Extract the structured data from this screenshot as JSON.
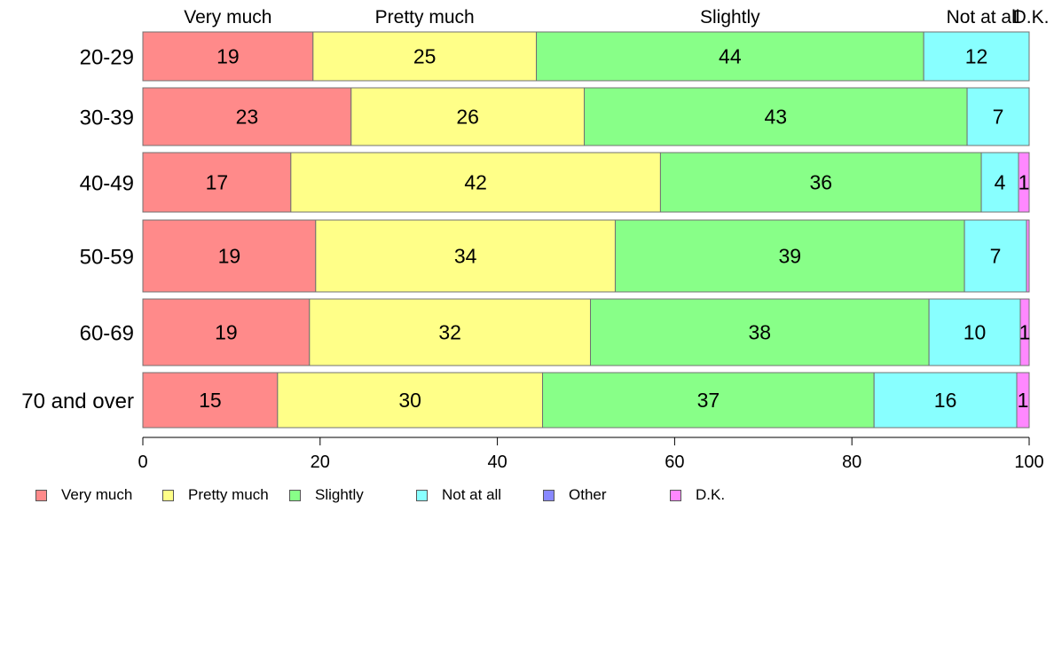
{
  "chart_data": {
    "type": "bar",
    "orientation": "horizontal",
    "stacked": true,
    "categories": [
      "20-29",
      "30-39",
      "40-49",
      "50-59",
      "60-69",
      "70 and over"
    ],
    "column_headers": [
      "Very much",
      "Pretty much",
      "Slightly",
      "Not at all",
      "D.K."
    ],
    "series": [
      {
        "name": "Very much",
        "color": "#ff8a8a",
        "values": [
          19.2,
          23.5,
          16.7,
          19.5,
          18.8,
          15.2
        ]
      },
      {
        "name": "Pretty much",
        "color": "#ffff88",
        "values": [
          25.2,
          26.3,
          41.7,
          33.8,
          31.7,
          29.9
        ]
      },
      {
        "name": "Slightly",
        "color": "#88ff88",
        "values": [
          43.7,
          43.2,
          36.2,
          39.4,
          38.2,
          37.4
        ]
      },
      {
        "name": "Not at all",
        "color": "#88ffff",
        "values": [
          11.9,
          7.0,
          4.2,
          7.0,
          10.3,
          16.1
        ]
      },
      {
        "name": "Other",
        "color": "#8888ff",
        "values": [
          0,
          0,
          0,
          0,
          0,
          0
        ]
      },
      {
        "name": "D.K.",
        "color": "#ff88ff",
        "values": [
          0,
          0,
          1.2,
          0.3,
          1.0,
          1.4
        ]
      }
    ],
    "data_labels": [
      [
        "19",
        "25",
        "44",
        "12",
        "",
        ""
      ],
      [
        "23",
        "26",
        "43",
        "7",
        "",
        ""
      ],
      [
        "17",
        "42",
        "36",
        "4",
        "",
        "1"
      ],
      [
        "19",
        "34",
        "39",
        "7",
        "",
        ""
      ],
      [
        "19",
        "32",
        "38",
        "10",
        "",
        "1"
      ],
      [
        "15",
        "30",
        "37",
        "16",
        "",
        "1"
      ]
    ],
    "xlim": [
      0,
      100
    ],
    "xticks": [
      "0",
      "20",
      "40",
      "60",
      "80",
      "100"
    ],
    "legend_position": "bottom",
    "grid": false
  }
}
